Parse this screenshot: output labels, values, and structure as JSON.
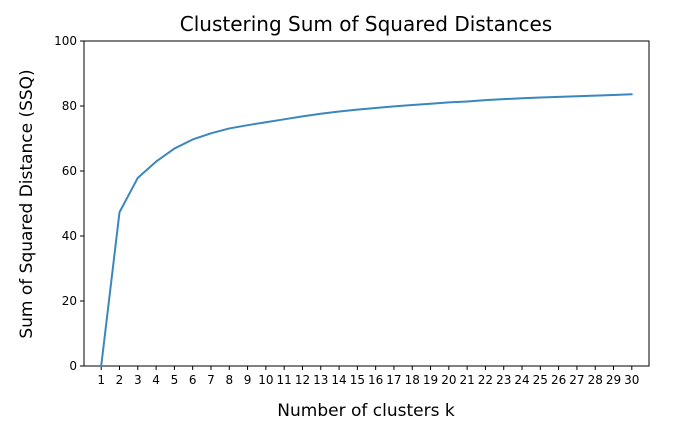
{
  "chart_data": {
    "type": "line",
    "title": "Clustering Sum of Squared Distances",
    "xlabel": "Number of clusters k",
    "ylabel": "Sum of Squared Distance (SSQ)",
    "xlim": [
      0.06,
      30.94
    ],
    "ylim": [
      0,
      100
    ],
    "x_ticks": [
      1,
      2,
      3,
      4,
      5,
      6,
      7,
      8,
      9,
      10,
      11,
      12,
      13,
      14,
      15,
      16,
      17,
      18,
      19,
      20,
      21,
      22,
      23,
      24,
      25,
      26,
      27,
      28,
      29,
      30
    ],
    "y_ticks": [
      0,
      20,
      40,
      60,
      80,
      100
    ],
    "grid": false,
    "legend": "none",
    "series": [
      {
        "color": "#3a87c0",
        "x": [
          1,
          2,
          3,
          4,
          5,
          6,
          7,
          8,
          9,
          10,
          11,
          12,
          13,
          14,
          15,
          16,
          17,
          18,
          19,
          20,
          21,
          22,
          23,
          24,
          25,
          26,
          27,
          28,
          29,
          30
        ],
        "values": [
          0,
          47.3,
          57.9,
          62.9,
          66.9,
          69.7,
          71.6,
          73.1,
          74.1,
          75.0,
          75.9,
          76.8,
          77.6,
          78.3,
          78.9,
          79.4,
          79.9,
          80.3,
          80.7,
          81.1,
          81.4,
          81.8,
          82.1,
          82.4,
          82.6,
          82.8,
          83.0,
          83.2,
          83.4,
          83.6
        ]
      }
    ]
  }
}
